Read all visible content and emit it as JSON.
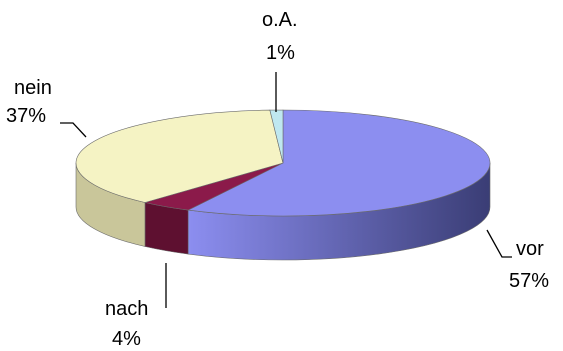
{
  "chart_data": {
    "type": "pie",
    "title": "",
    "categories": [
      "vor",
      "nach",
      "nein",
      "o.A."
    ],
    "values": [
      57,
      4,
      37,
      1
    ],
    "value_labels": [
      "57%",
      "4%",
      "37%",
      "1%"
    ],
    "colors": [
      "#8c8ef0",
      "#8b1a4a",
      "#f5f3c4",
      "#bfe8f0"
    ],
    "side_colors": [
      "#3a3d75",
      "#5e1030",
      "#c9c69a",
      "#8fc0c8"
    ],
    "style": "3d-tilted",
    "legend": "none",
    "labels_position": "outside-with-leaders"
  }
}
